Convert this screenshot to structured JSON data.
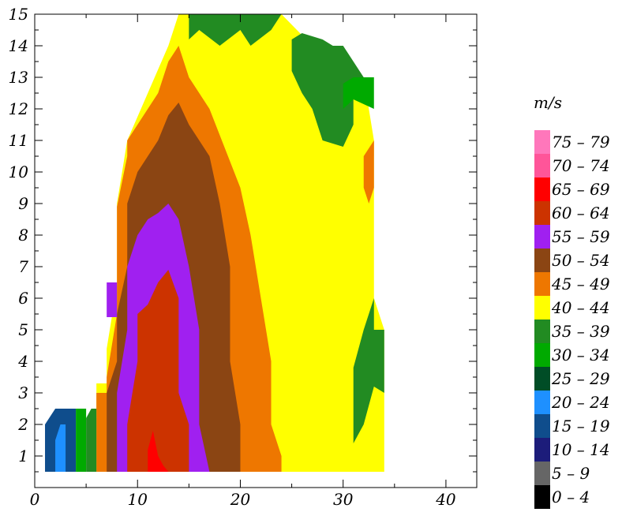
{
  "chart_data": {
    "type": "heatmap",
    "title": "",
    "xlabel": "",
    "ylabel": "",
    "xlim": [
      0,
      43
    ],
    "ylim": [
      0,
      15
    ],
    "x_ticks": [
      "0",
      "10",
      "20",
      "30",
      "40"
    ],
    "y_ticks": [
      "1",
      "2",
      "3",
      "4",
      "5",
      "6",
      "7",
      "8",
      "9",
      "10",
      "11",
      "12",
      "13",
      "14",
      "15"
    ],
    "legend": {
      "title": "m/s",
      "position": "right",
      "bins": [
        {
          "label": "75 – 79",
          "color": "#ff77bb"
        },
        {
          "label": "70 – 74",
          "color": "#ff5599"
        },
        {
          "label": "65 – 69",
          "color": "#ff0000"
        },
        {
          "label": "60 – 64",
          "color": "#cc3300"
        },
        {
          "label": "55 – 59",
          "color": "#a020f0"
        },
        {
          "label": "50 – 54",
          "color": "#8b4513"
        },
        {
          "label": "45 – 49",
          "color": "#ee7700"
        },
        {
          "label": "40 – 44",
          "color": "#ffff00"
        },
        {
          "label": "35 – 39",
          "color": "#228b22"
        },
        {
          "label": "30 – 34",
          "color": "#00aa00"
        },
        {
          "label": "25 – 29",
          "color": "#004d26"
        },
        {
          "label": "20 – 24",
          "color": "#1e90ff"
        },
        {
          "label": "15 – 19",
          "color": "#0f4d8c"
        },
        {
          "label": "10 – 14",
          "color": "#1c1c7a"
        },
        {
          "label": "5 – 9",
          "color": "#666666"
        },
        {
          "label": "0 – 4",
          "color": "#000000"
        }
      ]
    },
    "regions": [
      {
        "bin": "40 – 44",
        "polygon": [
          [
            6,
            0.5
          ],
          [
            6,
            3.3
          ],
          [
            7,
            3.3
          ],
          [
            7,
            4.4
          ],
          [
            8,
            6.4
          ],
          [
            8,
            9
          ],
          [
            9,
            11
          ],
          [
            13,
            14
          ],
          [
            14,
            15
          ],
          [
            24,
            15
          ],
          [
            27,
            14
          ],
          [
            32,
            13
          ],
          [
            33,
            11
          ],
          [
            33,
            6
          ],
          [
            34,
            5
          ],
          [
            34,
            0.5
          ]
        ]
      },
      {
        "bin": "35 – 39",
        "polygon": [
          [
            31,
            1.4
          ],
          [
            32,
            2
          ],
          [
            33,
            3.2
          ],
          [
            34,
            3
          ],
          [
            34,
            5
          ],
          [
            33,
            5
          ],
          [
            33,
            6
          ],
          [
            32,
            5
          ],
          [
            31,
            3.8
          ],
          [
            31,
            3
          ]
        ]
      },
      {
        "bin": "35 – 39",
        "polygon": [
          [
            25,
            13.2
          ],
          [
            26,
            12.5
          ],
          [
            27,
            12
          ],
          [
            28,
            11
          ],
          [
            30,
            10.8
          ],
          [
            31,
            11.5
          ],
          [
            31,
            12.5
          ],
          [
            33,
            13
          ],
          [
            32,
            13
          ],
          [
            30,
            14
          ],
          [
            29,
            14
          ],
          [
            28,
            14.2
          ],
          [
            26,
            14.4
          ],
          [
            25,
            14.2
          ]
        ]
      },
      {
        "bin": "30 – 34",
        "polygon": [
          [
            30,
            12
          ],
          [
            31,
            12.3
          ],
          [
            33,
            12
          ],
          [
            33,
            13
          ],
          [
            31,
            13
          ],
          [
            30,
            12.8
          ]
        ]
      },
      {
        "bin": "35 – 39",
        "polygon": [
          [
            15,
            14.2
          ],
          [
            16,
            14.5
          ],
          [
            18,
            14
          ],
          [
            20,
            14.5
          ],
          [
            21,
            14
          ],
          [
            23,
            14.5
          ],
          [
            24,
            15
          ],
          [
            15,
            15
          ]
        ]
      },
      {
        "bin": "45 – 49",
        "polygon": [
          [
            6,
            0.5
          ],
          [
            6,
            3
          ],
          [
            7,
            3
          ],
          [
            7,
            3.5
          ],
          [
            8,
            5.5
          ],
          [
            8,
            8.9
          ],
          [
            9,
            10.5
          ],
          [
            9,
            11
          ],
          [
            11,
            12
          ],
          [
            12,
            12.5
          ],
          [
            13,
            13.5
          ],
          [
            14,
            14
          ],
          [
            15,
            13
          ],
          [
            17,
            12
          ],
          [
            20,
            9.5
          ],
          [
            21,
            8
          ],
          [
            22,
            6
          ],
          [
            23,
            4
          ],
          [
            23,
            2
          ],
          [
            24,
            1
          ],
          [
            24,
            0.5
          ]
        ]
      },
      {
        "bin": "45 – 49",
        "polygon": [
          [
            32,
            10.5
          ],
          [
            33,
            11
          ],
          [
            33,
            9.5
          ],
          [
            32.5,
            9
          ],
          [
            32,
            9.5
          ]
        ]
      },
      {
        "bin": "50 – 54",
        "polygon": [
          [
            7,
            0.5
          ],
          [
            7,
            3
          ],
          [
            8,
            4
          ],
          [
            8,
            5.5
          ],
          [
            9,
            7
          ],
          [
            9,
            9
          ],
          [
            10,
            10
          ],
          [
            11,
            10.5
          ],
          [
            12,
            11
          ],
          [
            13,
            11.8
          ],
          [
            14,
            12.2
          ],
          [
            15,
            11.5
          ],
          [
            17,
            10.5
          ],
          [
            18,
            9
          ],
          [
            19,
            7
          ],
          [
            19,
            4
          ],
          [
            20,
            2
          ],
          [
            20,
            0.5
          ]
        ]
      },
      {
        "bin": "55 – 59",
        "polygon": [
          [
            8,
            0.5
          ],
          [
            8,
            3
          ],
          [
            9,
            5
          ],
          [
            9,
            7
          ],
          [
            10,
            8
          ],
          [
            11,
            8.5
          ],
          [
            12,
            8.7
          ],
          [
            13,
            9
          ],
          [
            14,
            8.5
          ],
          [
            15,
            7
          ],
          [
            16,
            5
          ],
          [
            16,
            2
          ],
          [
            17,
            0.5
          ]
        ]
      },
      {
        "bin": "55 – 59",
        "polygon": [
          [
            7,
            5.4
          ],
          [
            8,
            5.4
          ],
          [
            8,
            6.5
          ],
          [
            7,
            6.5
          ]
        ]
      },
      {
        "bin": "60 – 64",
        "polygon": [
          [
            9,
            0.5
          ],
          [
            9,
            2
          ],
          [
            10,
            4
          ],
          [
            10,
            5.5
          ],
          [
            11,
            5.8
          ],
          [
            12,
            6.5
          ],
          [
            13,
            6.9
          ],
          [
            14,
            6
          ],
          [
            14,
            3
          ],
          [
            15,
            2
          ],
          [
            15,
            0.5
          ]
        ]
      },
      {
        "bin": "65 – 69",
        "polygon": [
          [
            11,
            0.5
          ],
          [
            11,
            1.2
          ],
          [
            11.5,
            1.8
          ],
          [
            12,
            1
          ],
          [
            12.5,
            0.7
          ],
          [
            13,
            0.5
          ]
        ]
      },
      {
        "bin": "15 – 19",
        "polygon": [
          [
            1,
            0.5
          ],
          [
            1,
            2
          ],
          [
            2,
            2.5
          ],
          [
            4,
            2.5
          ],
          [
            4,
            0.5
          ]
        ]
      },
      {
        "bin": "20 – 24",
        "polygon": [
          [
            2,
            0.5
          ],
          [
            2,
            1.5
          ],
          [
            2.5,
            2
          ],
          [
            3,
            2
          ],
          [
            3,
            0.5
          ]
        ]
      },
      {
        "bin": "30 – 34",
        "polygon": [
          [
            4,
            0.5
          ],
          [
            4,
            2.5
          ],
          [
            5,
            2.5
          ],
          [
            5,
            0.5
          ]
        ]
      },
      {
        "bin": "35 – 39",
        "polygon": [
          [
            5,
            0.5
          ],
          [
            5,
            2.2
          ],
          [
            5.5,
            2.5
          ],
          [
            6,
            2.5
          ],
          [
            6,
            0.5
          ]
        ]
      }
    ]
  }
}
